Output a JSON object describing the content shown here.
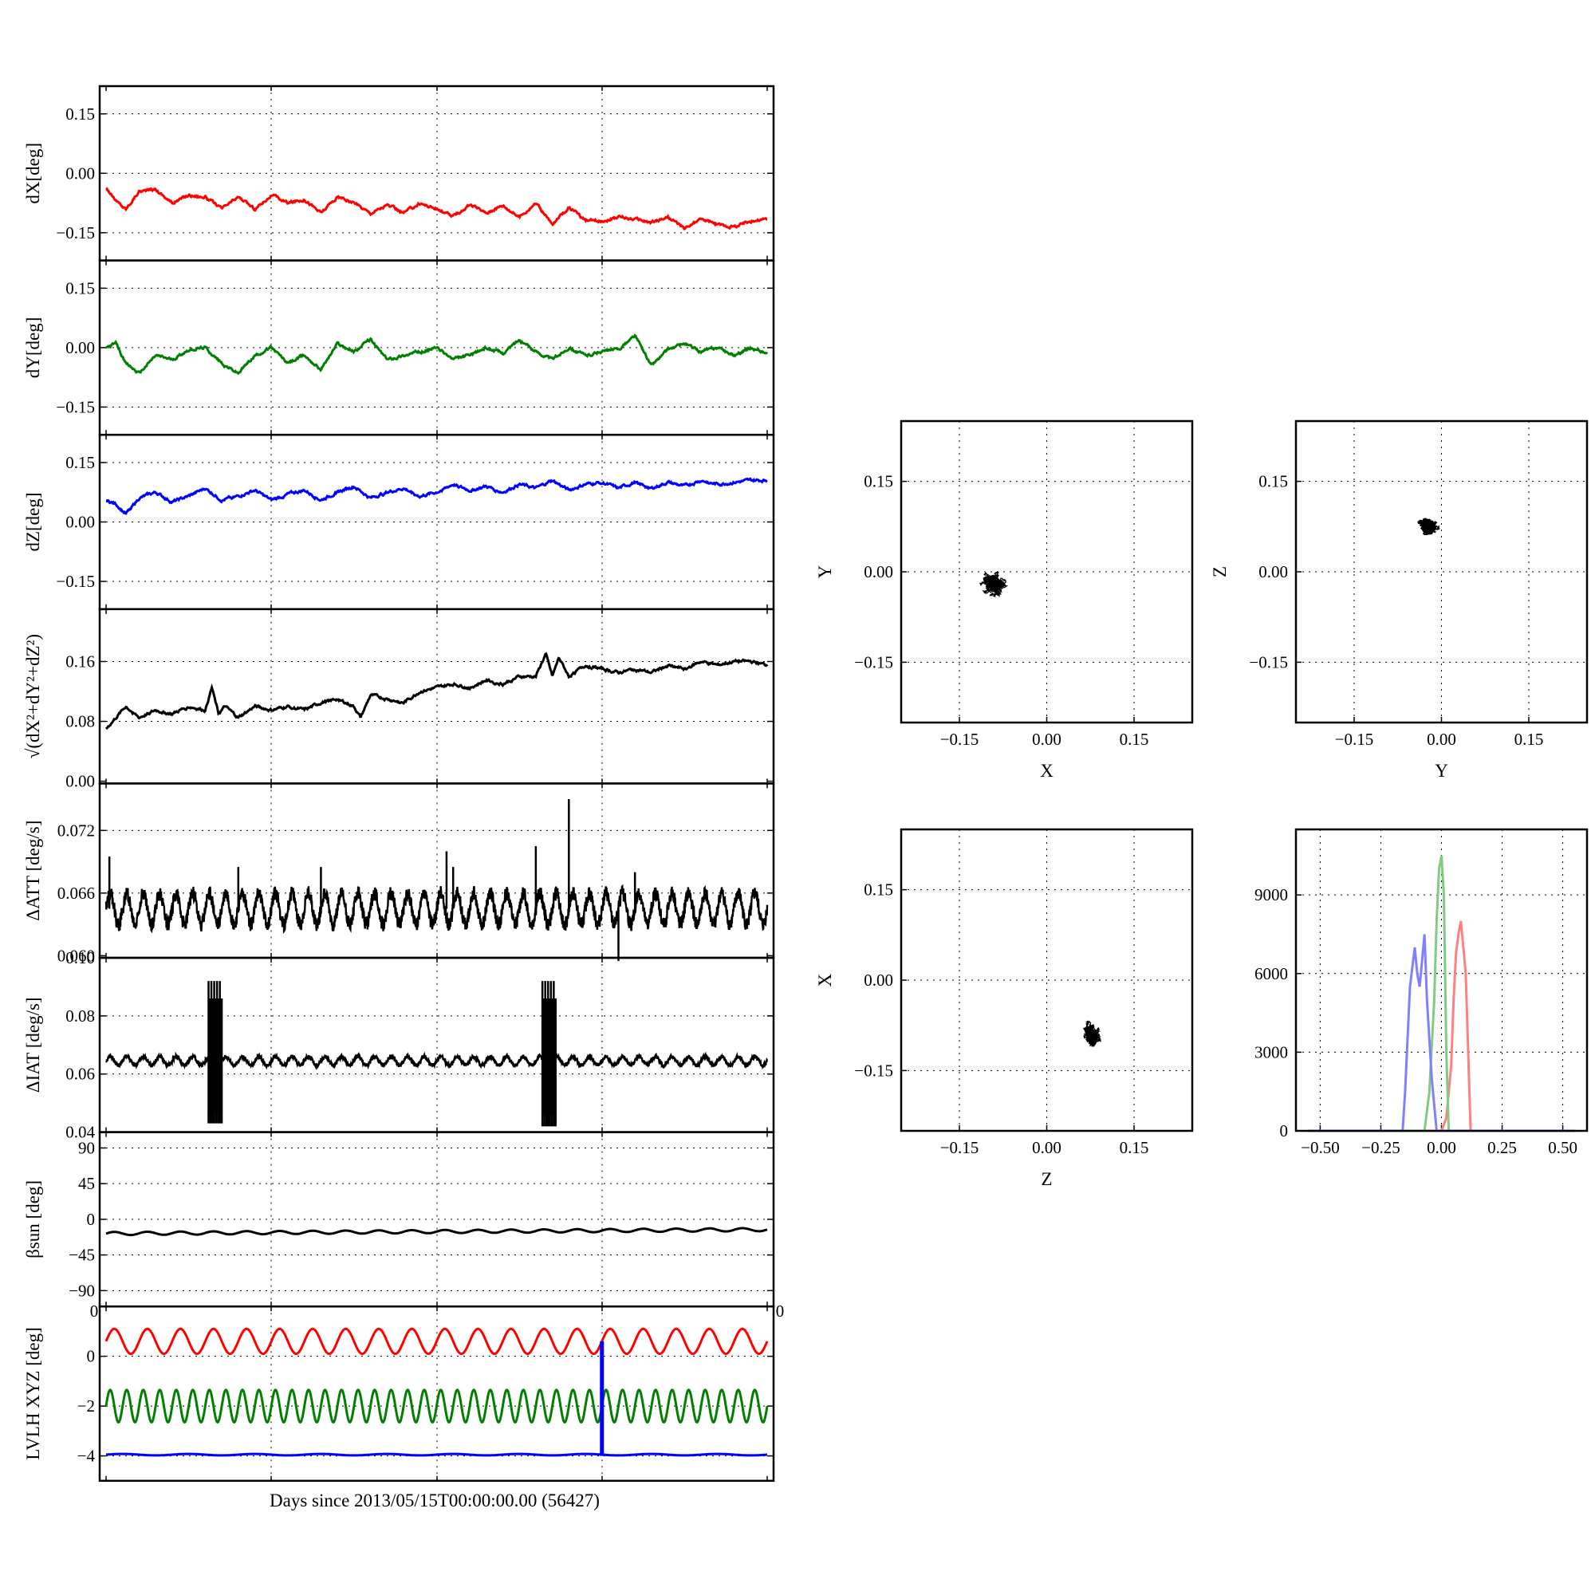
{
  "chart_data": [
    {
      "type": "line",
      "panel": "dX",
      "ylabel": "dX[deg]",
      "yticks": [
        "0.15",
        "0.00",
        "−0.15"
      ],
      "ytick_values": [
        0.15,
        0.0,
        -0.15
      ],
      "ylim": [
        -0.22,
        0.22
      ],
      "series": [
        {
          "color": "#ff0000",
          "x": [
            0,
            0.3,
            0.6,
            1.0,
            1.5,
            2.0,
            2.5,
            3.0,
            3.5,
            4.0,
            4.5,
            5.0,
            5.5,
            6.0,
            6.5,
            7.0,
            7.5,
            8.0,
            8.5,
            9.0,
            9.5,
            10.0,
            10.5,
            11.0,
            11.5,
            12.0,
            12.5,
            13.0,
            13.5,
            14.0,
            14.5,
            15.0,
            15.5,
            16.0,
            16.5,
            17.0,
            17.5,
            18.0,
            18.5,
            19.0,
            19.5,
            20.0
          ],
          "y": [
            -0.035,
            -0.07,
            -0.09,
            -0.045,
            -0.04,
            -0.075,
            -0.055,
            -0.06,
            -0.09,
            -0.06,
            -0.09,
            -0.055,
            -0.075,
            -0.065,
            -0.1,
            -0.06,
            -0.075,
            -0.1,
            -0.08,
            -0.1,
            -0.075,
            -0.09,
            -0.11,
            -0.08,
            -0.1,
            -0.08,
            -0.11,
            -0.075,
            -0.13,
            -0.085,
            -0.12,
            -0.12,
            -0.11,
            -0.115,
            -0.125,
            -0.11,
            -0.14,
            -0.115,
            -0.13,
            -0.135,
            -0.12,
            -0.115
          ]
        }
      ]
    },
    {
      "type": "line",
      "panel": "dY",
      "ylabel": "dY[deg]",
      "yticks": [
        "0.15",
        "0.00",
        "−0.15"
      ],
      "ytick_values": [
        0.15,
        0.0,
        -0.15
      ],
      "ylim": [
        -0.22,
        0.22
      ],
      "series": [
        {
          "color": "#008000",
          "x": [
            0,
            0.3,
            0.6,
            1.0,
            1.5,
            2.0,
            2.5,
            3.0,
            3.5,
            4.0,
            4.5,
            5.0,
            5.5,
            6.0,
            6.5,
            7.0,
            7.5,
            8.0,
            8.5,
            9.0,
            9.5,
            10.0,
            10.5,
            11.0,
            11.5,
            12.0,
            12.5,
            13.0,
            13.5,
            14.0,
            14.5,
            15.0,
            15.5,
            16.0,
            16.5,
            17.0,
            17.5,
            18.0,
            18.5,
            19.0,
            19.5,
            20.0
          ],
          "y": [
            0.0,
            0.01,
            -0.04,
            -0.065,
            -0.02,
            -0.03,
            -0.005,
            0.0,
            -0.04,
            -0.065,
            -0.02,
            0.0,
            -0.04,
            -0.02,
            -0.055,
            0.01,
            -0.01,
            0.02,
            -0.03,
            -0.02,
            -0.01,
            0.0,
            -0.03,
            -0.02,
            0.0,
            -0.015,
            0.02,
            -0.01,
            -0.03,
            0.0,
            -0.02,
            -0.01,
            -0.005,
            0.03,
            -0.045,
            -0.005,
            0.01,
            -0.01,
            0.0,
            -0.02,
            0.0,
            -0.015
          ]
        }
      ]
    },
    {
      "type": "line",
      "panel": "dZ",
      "ylabel": "dZ[deg]",
      "yticks": [
        "0.15",
        "0.00",
        "−0.15"
      ],
      "ytick_values": [
        0.15,
        0.0,
        -0.15
      ],
      "ylim": [
        -0.22,
        0.22
      ],
      "series": [
        {
          "color": "#0000ff",
          "x": [
            0,
            0.3,
            0.6,
            1.0,
            1.5,
            2.0,
            2.5,
            3.0,
            3.5,
            4.0,
            4.5,
            5.0,
            5.5,
            6.0,
            6.5,
            7.0,
            7.5,
            8.0,
            8.5,
            9.0,
            9.5,
            10.0,
            10.5,
            11.0,
            11.5,
            12.0,
            12.5,
            13.0,
            13.5,
            14.0,
            14.5,
            15.0,
            15.5,
            16.0,
            16.5,
            17.0,
            17.5,
            18.0,
            18.5,
            19.0,
            19.5,
            20.0
          ],
          "y": [
            0.055,
            0.045,
            0.02,
            0.06,
            0.075,
            0.05,
            0.065,
            0.085,
            0.055,
            0.065,
            0.08,
            0.055,
            0.07,
            0.08,
            0.055,
            0.075,
            0.09,
            0.06,
            0.075,
            0.085,
            0.065,
            0.075,
            0.095,
            0.08,
            0.09,
            0.075,
            0.095,
            0.085,
            0.105,
            0.08,
            0.095,
            0.1,
            0.085,
            0.1,
            0.085,
            0.1,
            0.09,
            0.105,
            0.095,
            0.1,
            0.105,
            0.105
          ]
        }
      ]
    },
    {
      "type": "line",
      "panel": "dR",
      "ylabel": "√(dX²+dY²+dZ²)",
      "yticks": [
        "0.16",
        "0.08",
        "0.00"
      ],
      "ytick_values": [
        0.16,
        0.08,
        0.0
      ],
      "ylim": [
        -0.003,
        0.23
      ],
      "series": [
        {
          "color": "#000000",
          "x": [
            0,
            0.3,
            0.6,
            1.0,
            1.5,
            2.0,
            2.5,
            3.0,
            3.2,
            3.4,
            3.6,
            4.0,
            4.5,
            5.0,
            5.5,
            6.0,
            6.5,
            7.0,
            7.5,
            7.7,
            8.0,
            8.5,
            9.0,
            9.5,
            10.0,
            10.5,
            11.0,
            11.5,
            12.0,
            12.5,
            13.0,
            13.3,
            13.5,
            13.7,
            14.0,
            14.5,
            15.0,
            15.5,
            16.0,
            16.5,
            17.0,
            17.5,
            18.0,
            18.5,
            19.0,
            19.5,
            20.0
          ],
          "y": [
            0.07,
            0.085,
            0.1,
            0.085,
            0.095,
            0.09,
            0.1,
            0.095,
            0.125,
            0.09,
            0.1,
            0.085,
            0.1,
            0.095,
            0.1,
            0.095,
            0.105,
            0.11,
            0.1,
            0.085,
            0.115,
            0.11,
            0.105,
            0.12,
            0.125,
            0.13,
            0.125,
            0.135,
            0.13,
            0.14,
            0.14,
            0.17,
            0.14,
            0.165,
            0.14,
            0.155,
            0.15,
            0.145,
            0.15,
            0.145,
            0.155,
            0.15,
            0.16,
            0.155,
            0.16,
            0.16,
            0.155
          ]
        }
      ]
    },
    {
      "type": "line",
      "panel": "dATT",
      "ylabel": "ΔATT [deg/s]",
      "yticks": [
        "0.072",
        "0.066",
        "0.060"
      ],
      "ytick_values": [
        0.072,
        0.066,
        0.06
      ],
      "ylim": [
        0.0598,
        0.0765
      ],
      "series": [
        {
          "color": "#000000",
          "mean": 0.0645,
          "amplitude": 0.0015,
          "period_days": 0.5,
          "spikes": [
            {
              "x": 0.1,
              "y": 0.0695
            },
            {
              "x": 4.0,
              "y": 0.0685
            },
            {
              "x": 6.5,
              "y": 0.0685
            },
            {
              "x": 10.3,
              "y": 0.07
            },
            {
              "x": 10.5,
              "y": 0.0685
            },
            {
              "x": 13.0,
              "y": 0.0705
            },
            {
              "x": 14.0,
              "y": 0.075
            },
            {
              "x": 15.5,
              "y": 0.0595
            },
            {
              "x": 16.0,
              "y": 0.068
            }
          ]
        }
      ]
    },
    {
      "type": "line",
      "panel": "dIAT",
      "ylabel": "ΔIAT [deg/s]",
      "yticks": [
        "0.10",
        "0.08",
        "0.06",
        "0.04"
      ],
      "ytick_values": [
        0.1,
        0.08,
        0.06,
        0.04
      ],
      "ylim": [
        0.04,
        0.1
      ],
      "series": [
        {
          "color": "#000000",
          "mean": 0.0645,
          "amplitude": 0.0015,
          "period_days": 0.5,
          "bursts": [
            {
              "x_start": 3.1,
              "x_end": 3.5,
              "ymin": 0.043,
              "ymax": 0.092
            },
            {
              "x_start": 13.2,
              "x_end": 13.6,
              "ymin": 0.042,
              "ymax": 0.092
            }
          ]
        }
      ]
    },
    {
      "type": "line",
      "panel": "beta_sun",
      "ylabel": "βsun [deg]",
      "yticks": [
        "90",
        "45",
        "0",
        "−45",
        "−90"
      ],
      "ytick_values": [
        90,
        45,
        0,
        -45,
        -90
      ],
      "ylim": [
        -110,
        110
      ],
      "series": [
        {
          "color": "#000000",
          "x": [
            0,
            20
          ],
          "y": [
            -18,
            -13
          ],
          "ripple_amplitude": 2,
          "ripple_period_days": 1
        }
      ]
    },
    {
      "type": "line",
      "panel": "LVLH",
      "ylabel": "LVLH XYZ [deg]",
      "yticks": [
        "0",
        "−2",
        "−4"
      ],
      "ytick_values": [
        0,
        -2,
        -4
      ],
      "ylim": [
        -5,
        2
      ],
      "corner_labels": [
        "0",
        "0"
      ],
      "xlabel": "Days since 2013/05/15T00:00:00.00 (56427)",
      "series": [
        {
          "color": "#ff0000",
          "mean": 0.6,
          "amplitude": 0.5,
          "period_days": 1.0
        },
        {
          "color": "#008000",
          "mean": -2.0,
          "amplitude": 0.65,
          "period_days": 0.5
        },
        {
          "color": "#0000ff",
          "mean": -3.95,
          "amplitude": 0.03,
          "period_days": 2.0,
          "step": {
            "x": 15.0,
            "y_top": 0.6,
            "y_bottom": -4.0
          }
        }
      ]
    },
    {
      "type": "scatter",
      "panel": "XY",
      "xlabel": "X",
      "ylabel": "Y",
      "xticks": [
        "−0.15",
        "0.00",
        "0.15"
      ],
      "yticks": [
        "0.15",
        "0.00",
        "−0.15"
      ],
      "tick_values": [
        -0.15,
        0.0,
        0.15
      ],
      "xlim": [
        -0.25,
        0.25
      ],
      "ylim": [
        -0.25,
        0.25
      ],
      "cloud": {
        "cx": -0.09,
        "cy": -0.02,
        "sx": 0.025,
        "sy": 0.025,
        "color": "#000000"
      }
    },
    {
      "type": "scatter",
      "panel": "YZ",
      "xlabel": "Y",
      "ylabel": "Z",
      "xticks": [
        "−0.15",
        "0.00",
        "0.15"
      ],
      "yticks": [
        "0.15",
        "0.00",
        "−0.15"
      ],
      "tick_values": [
        -0.15,
        0.0,
        0.15
      ],
      "xlim": [
        -0.25,
        0.25
      ],
      "ylim": [
        -0.25,
        0.25
      ],
      "cloud": {
        "cx": -0.02,
        "cy": 0.075,
        "sx": 0.025,
        "sy": 0.02,
        "color": "#000000"
      }
    },
    {
      "type": "scatter",
      "panel": "ZX",
      "xlabel": "Z",
      "ylabel": "X",
      "xticks": [
        "−0.15",
        "0.00",
        "0.15"
      ],
      "yticks": [
        "0.15",
        "0.00",
        "−0.15"
      ],
      "tick_values": [
        -0.15,
        0.0,
        0.15
      ],
      "xlim": [
        -0.25,
        0.25
      ],
      "ylim": [
        -0.25,
        0.25
      ],
      "cloud": {
        "cx": 0.075,
        "cy": -0.09,
        "sx": 0.02,
        "sy": 0.025,
        "color": "#000000"
      }
    },
    {
      "type": "line",
      "panel": "histogram",
      "xticks": [
        "−0.50",
        "−0.25",
        "0.00",
        "0.25",
        "0.50"
      ],
      "xtick_values": [
        -0.5,
        -0.25,
        0.0,
        0.25,
        0.5
      ],
      "yticks": [
        "9000",
        "6000",
        "3000",
        "0"
      ],
      "ytick_values": [
        9000,
        6000,
        3000,
        0
      ],
      "xlim": [
        -0.6,
        0.6
      ],
      "ylim": [
        0,
        11500
      ],
      "series": [
        {
          "color": "#ff8080",
          "x": [
            -0.55,
            0.0,
            0.02,
            0.04,
            0.05,
            0.06,
            0.07,
            0.08,
            0.09,
            0.1,
            0.11,
            0.12,
            0.55
          ],
          "y": [
            0,
            0,
            500,
            2500,
            5000,
            6800,
            7500,
            8000,
            7000,
            6000,
            3000,
            0,
            0
          ]
        },
        {
          "color": "#80cc80",
          "x": [
            -0.55,
            -0.07,
            -0.05,
            -0.03,
            -0.02,
            -0.01,
            0.0,
            0.01,
            0.02,
            0.03,
            0.55
          ],
          "y": [
            0,
            0,
            1500,
            5000,
            8000,
            10000,
            10500,
            9000,
            3000,
            0,
            0
          ]
        },
        {
          "color": "#8080ff",
          "x": [
            -0.55,
            -0.16,
            -0.15,
            -0.13,
            -0.11,
            -0.1,
            -0.09,
            -0.08,
            -0.07,
            -0.06,
            -0.04,
            -0.02,
            0.55
          ],
          "y": [
            0,
            0,
            1500,
            5500,
            7000,
            6000,
            5500,
            6500,
            7500,
            5000,
            2000,
            0,
            0
          ]
        }
      ]
    }
  ]
}
